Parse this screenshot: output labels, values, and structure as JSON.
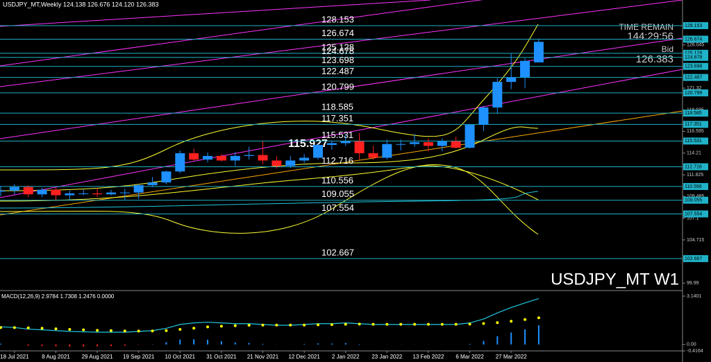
{
  "chart_data": {
    "type": "candlestick",
    "title": "USDJPY_MT,Weekly  124.138 126.676 124.120 126.383",
    "symbol_label": "USDJPY_MT W1",
    "time_remain_label": "TIME REMAIN",
    "time_remain": "144:29:56",
    "bid_label": "Bid",
    "bid": "126.383",
    "price_tag": "115.927",
    "categories": [
      null,
      "18 Jul 2021",
      null,
      null,
      "8 Aug 2021",
      null,
      null,
      "29 Aug 2021",
      null,
      null,
      "19 Sep 2021",
      null,
      null,
      "10 Oct 2021",
      null,
      null,
      "31 Oct 2021",
      null,
      null,
      "21 Nov 2021",
      null,
      null,
      "12 Dec 2021",
      null,
      null,
      "2 Jan 2022",
      null,
      null,
      "23 Jan 2022",
      null,
      null,
      "13 Feb 2022",
      null,
      null,
      "6 Mar 2022",
      null,
      null,
      "27 Mar 2022",
      null,
      null
    ],
    "open": [
      110.0,
      110.1,
      110.5,
      109.7,
      110.2,
      109.6,
      109.8,
      109.8,
      109.7,
      109.9,
      109.9,
      110.7,
      111.0,
      112.2,
      114.2,
      113.5,
      113.9,
      113.4,
      113.9,
      114.0,
      113.4,
      112.8,
      113.4,
      113.7,
      115.1,
      115.3,
      115.5,
      114.2,
      113.7,
      115.2,
      115.2,
      115.4,
      115.0,
      115.5,
      114.8,
      117.3,
      119.2,
      122.0,
      122.5,
      124.138
    ],
    "high": [
      110.6,
      110.8,
      110.7,
      110.4,
      110.4,
      110.1,
      110.2,
      110.4,
      110.2,
      110.3,
      110.8,
      111.6,
      112.3,
      114.5,
      114.7,
      114.3,
      114.1,
      114.3,
      114.9,
      115.5,
      113.9,
      113.9,
      114.1,
      115.2,
      115.6,
      116.3,
      116.4,
      115.0,
      115.7,
      115.7,
      116.3,
      115.8,
      115.8,
      116.0,
      117.4,
      119.4,
      122.4,
      125.1,
      124.6,
      126.676
    ],
    "low": [
      109.5,
      109.7,
      109.4,
      109.4,
      109.1,
      109.1,
      109.6,
      109.4,
      109.6,
      109.1,
      109.2,
      110.5,
      110.8,
      112.0,
      113.4,
      113.2,
      113.3,
      112.8,
      113.5,
      113.0,
      112.5,
      112.6,
      113.1,
      113.5,
      114.6,
      115.0,
      113.5,
      113.5,
      113.5,
      114.5,
      114.9,
      114.4,
      114.4,
      114.7,
      114.7,
      116.6,
      118.5,
      121.2,
      121.3,
      124.12
    ],
    "close": [
      110.1,
      110.5,
      109.7,
      110.2,
      109.6,
      109.8,
      109.8,
      109.7,
      109.9,
      109.9,
      110.7,
      111.0,
      112.2,
      114.2,
      113.5,
      113.9,
      113.4,
      113.9,
      114.0,
      113.4,
      112.8,
      113.4,
      113.7,
      115.1,
      115.3,
      115.5,
      114.2,
      113.7,
      115.2,
      115.2,
      115.4,
      115.0,
      115.5,
      114.8,
      117.3,
      119.2,
      122.0,
      122.5,
      124.3,
      126.383
    ],
    "up_color": "#1e90ff",
    "down_color": "#ff2020",
    "ylim": [
      99.17,
      130.96
    ],
    "yticks": [
      126.045,
      121.32,
      118.935,
      116.595,
      114.21,
      111.825,
      109.485,
      107.1,
      104.715,
      99.99
    ],
    "levels": [
      128.153,
      126.674,
      125.128,
      124.678,
      123.698,
      122.487,
      120.799,
      118.585,
      117.351,
      115.531,
      112.716,
      110.556,
      109.055,
      107.554,
      102.667
    ],
    "level_color": "#20b2c8",
    "indicator": {
      "title": "MACD(12,26,9) 2.9784 1.7308 1.2476 0.0000",
      "ylim": [
        -0.4164,
        3.1401
      ],
      "yticks": [
        3.1401,
        {
          "value": 0,
          "label": "0.00"
        },
        -0.4164
      ],
      "series": [
        {
          "type": "bar",
          "color": "#1e90ff",
          "values": [
            0.05,
            0,
            -0.08,
            -0.1,
            -0.12,
            -0.13,
            -0.13,
            -0.12,
            -0.1,
            -0.08,
            -0.02,
            0.02,
            0.15,
            0.32,
            0.34,
            0.31,
            0.21,
            0.13,
            0.1,
            0.04,
            -0.01,
            -0.01,
            0.04,
            0.07,
            0.06,
            0.09,
            0.03,
            -0.01,
            -0.01,
            -0.01,
            -0.01,
            -0.01,
            -0.01,
            -0.01,
            0.04,
            0.23,
            0.54,
            0.78,
            0.98,
            1.2476
          ]
        },
        {
          "type": "line",
          "color": "#20c8e0",
          "values": [
            1.15,
            1.1,
            1.0,
            0.95,
            0.9,
            0.85,
            0.82,
            0.8,
            0.8,
            0.8,
            0.85,
            0.9,
            1.05,
            1.3,
            1.4,
            1.45,
            1.4,
            1.35,
            1.35,
            1.3,
            1.25,
            1.25,
            1.3,
            1.35,
            1.35,
            1.4,
            1.35,
            1.3,
            1.3,
            1.3,
            1.3,
            1.3,
            1.3,
            1.3,
            1.4,
            1.65,
            2.05,
            2.4,
            2.7,
            2.9784
          ]
        },
        {
          "type": "dots",
          "color": "#ffff00",
          "values": [
            1.1,
            1.1,
            1.08,
            1.05,
            1.02,
            0.98,
            0.95,
            0.92,
            0.9,
            0.88,
            0.87,
            0.88,
            0.9,
            0.98,
            1.06,
            1.14,
            1.19,
            1.22,
            1.25,
            1.26,
            1.26,
            1.26,
            1.26,
            1.28,
            1.29,
            1.31,
            1.32,
            1.31,
            1.31,
            1.31,
            1.31,
            1.31,
            1.31,
            1.31,
            1.32,
            1.36,
            1.42,
            1.51,
            1.62,
            1.7308
          ]
        }
      ]
    }
  }
}
